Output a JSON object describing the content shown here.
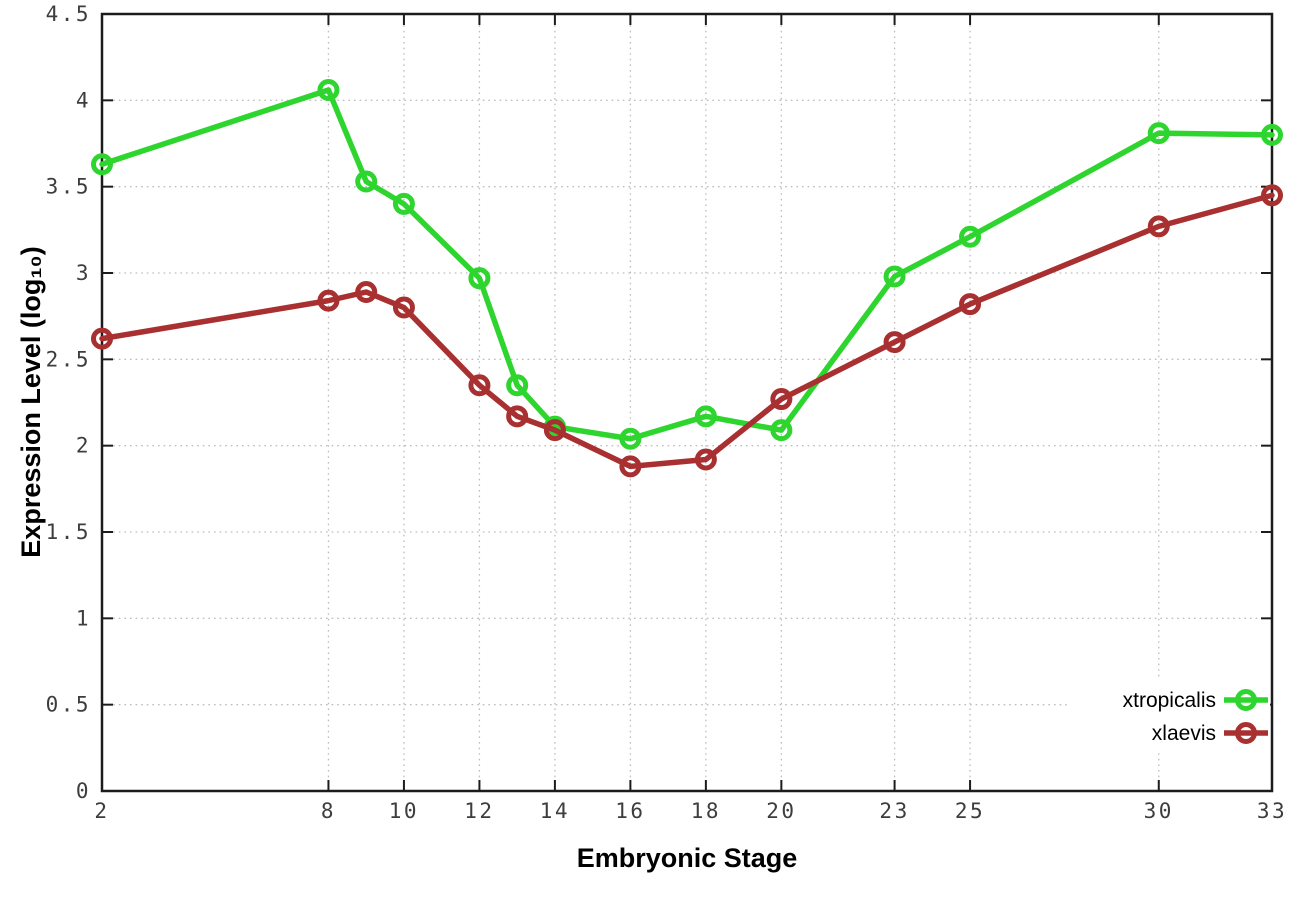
{
  "chart_data": {
    "type": "line",
    "title": "",
    "xlabel": "Embryonic Stage",
    "ylabel": "Expression Level (log₁₀)",
    "xlim": [
      2,
      33
    ],
    "ylim": [
      0,
      4.5
    ],
    "x_ticks": [
      2,
      8,
      10,
      12,
      14,
      16,
      18,
      20,
      23,
      25,
      30,
      33
    ],
    "y_ticks": [
      0,
      0.5,
      1,
      1.5,
      2,
      2.5,
      3,
      3.5,
      4,
      4.5
    ],
    "grid": true,
    "legend_position": "inside-bottom-right",
    "marker": "open-circle",
    "x": [
      2,
      8,
      9,
      10,
      12,
      13,
      14,
      16,
      18,
      20,
      23,
      25,
      30,
      33
    ],
    "series": [
      {
        "name": "xtropicalis",
        "color": "#2ed52e",
        "values": [
          3.63,
          4.06,
          3.53,
          3.4,
          2.97,
          2.35,
          2.11,
          2.04,
          2.17,
          2.09,
          2.98,
          3.21,
          3.81,
          3.8
        ]
      },
      {
        "name": "xlaevis",
        "color": "#a83030",
        "values": [
          2.62,
          2.84,
          2.89,
          2.8,
          2.35,
          2.17,
          2.09,
          1.88,
          1.92,
          2.27,
          2.6,
          2.82,
          3.27,
          3.45
        ]
      }
    ]
  },
  "styles": {
    "background": "#ffffff",
    "grid_color": "#bdbdbd",
    "axis_color": "#1c1c1c",
    "tick_label_color": "#3d3d3d"
  }
}
